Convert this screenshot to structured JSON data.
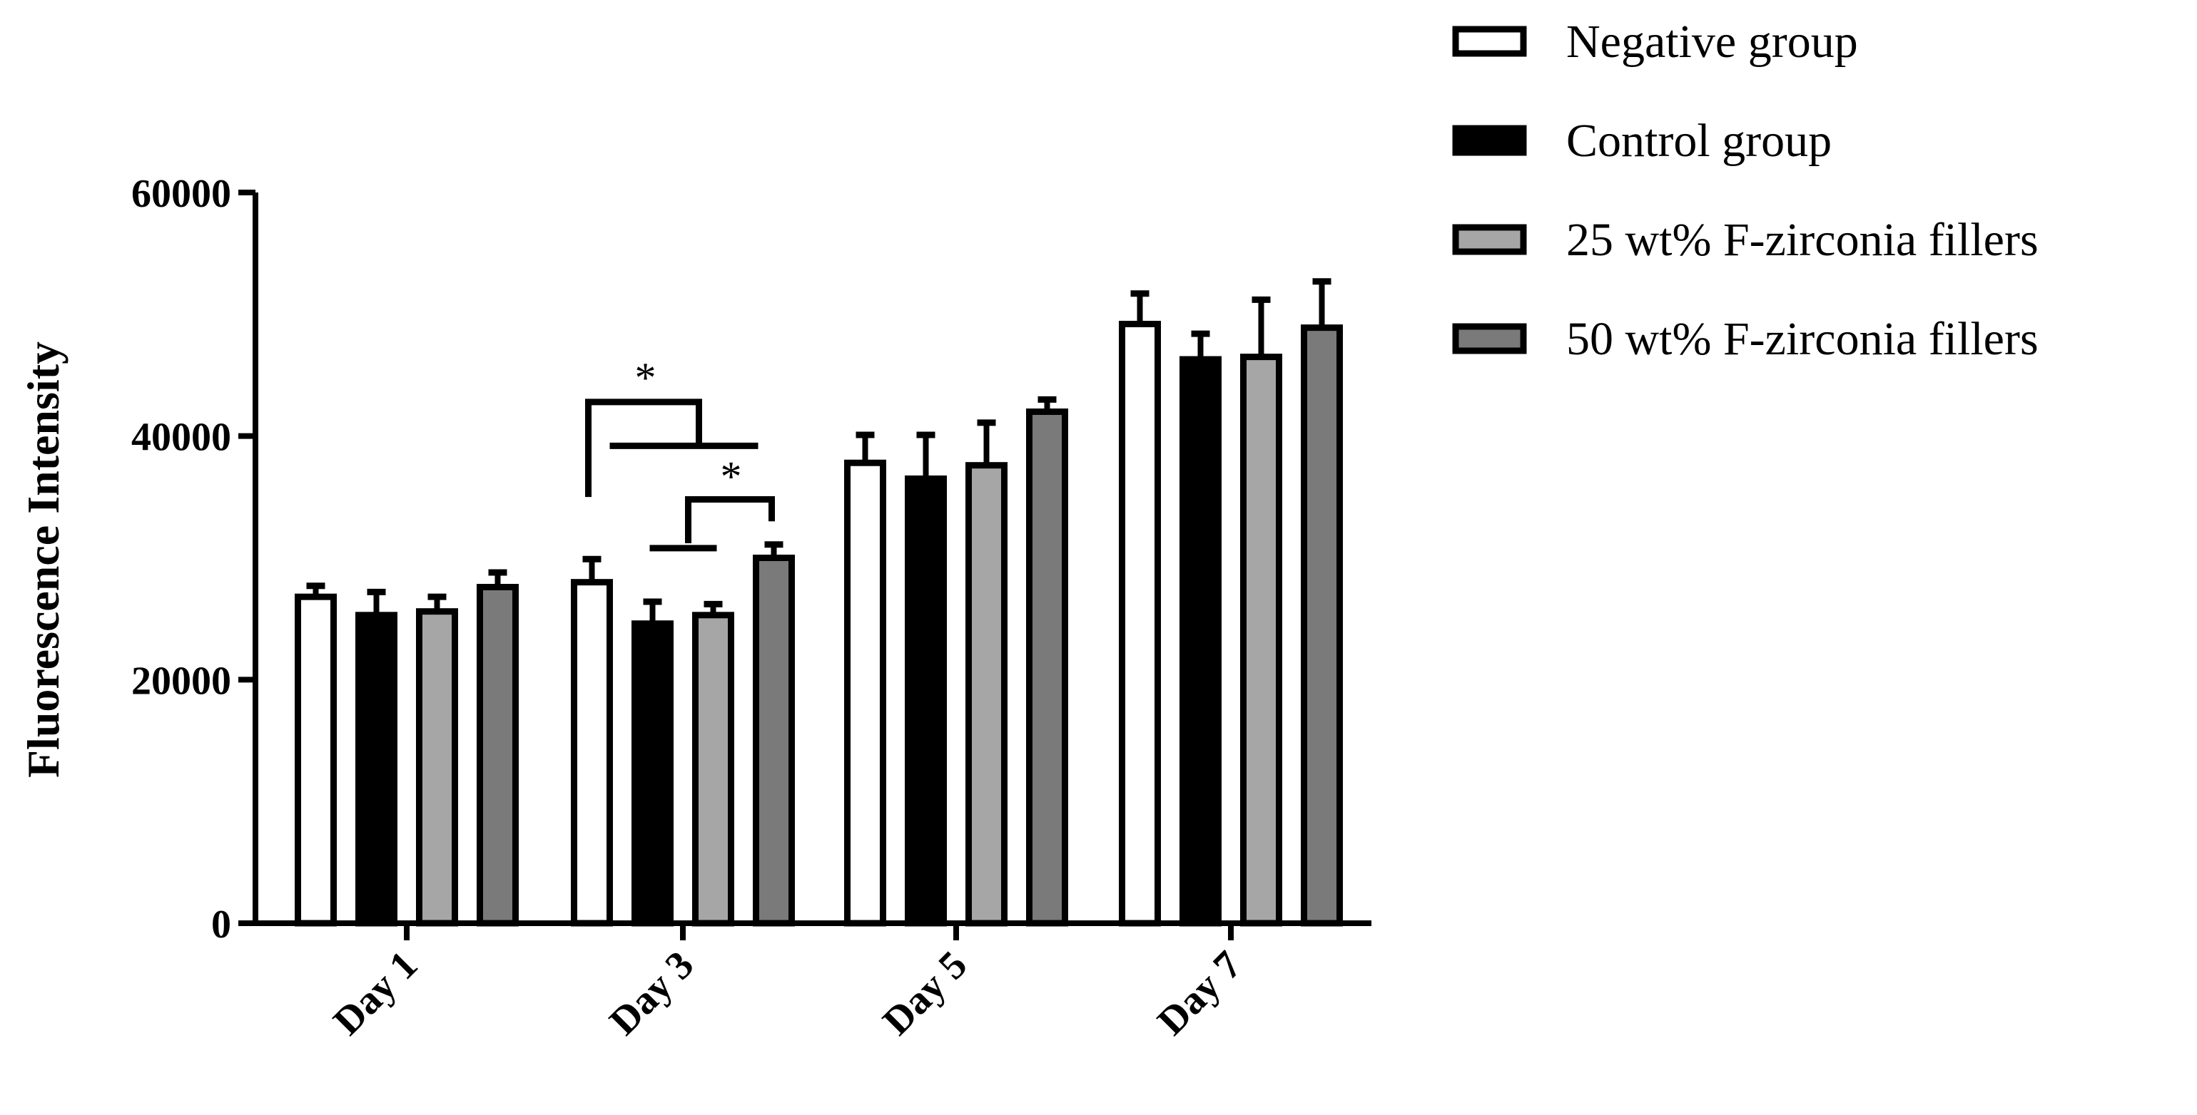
{
  "chart_data": {
    "type": "bar",
    "title": "",
    "xlabel": "",
    "ylabel": "Fluorescence Intensity",
    "ylim": [
      0,
      60000
    ],
    "yticks": [
      0,
      20000,
      40000,
      60000
    ],
    "categories": [
      "Day 1",
      "Day 3",
      "Day 5",
      "Day 7"
    ],
    "legend_position": "top-right",
    "grid": false,
    "series": [
      {
        "name": "Negative group",
        "color": "#ffffff",
        "values": [
          26800,
          28000,
          37800,
          49200
        ],
        "errors": [
          900,
          1900,
          2300,
          2500
        ]
      },
      {
        "name": "Control group",
        "color": "#000000",
        "values": [
          25300,
          24600,
          36500,
          46300
        ],
        "errors": [
          1900,
          1800,
          3600,
          2100
        ]
      },
      {
        "name": "25 wt% F-zirconia fillers",
        "color": "#a6a6a6",
        "values": [
          25600,
          25300,
          37600,
          46500
        ],
        "errors": [
          1200,
          900,
          3500,
          4700
        ]
      },
      {
        "name": "50 wt% F-zirconia fillers",
        "color": "#7a7a7a",
        "values": [
          27600,
          30000,
          42000,
          48900
        ],
        "errors": [
          1200,
          1100,
          1000,
          3800
        ]
      }
    ],
    "annotations": [
      {
        "category": "Day 3",
        "label": "*",
        "from_series": 0,
        "to_series": [
          1,
          2
        ]
      },
      {
        "category": "Day 3",
        "label": "*",
        "from_series": 1,
        "to_series": [
          3
        ]
      }
    ]
  }
}
